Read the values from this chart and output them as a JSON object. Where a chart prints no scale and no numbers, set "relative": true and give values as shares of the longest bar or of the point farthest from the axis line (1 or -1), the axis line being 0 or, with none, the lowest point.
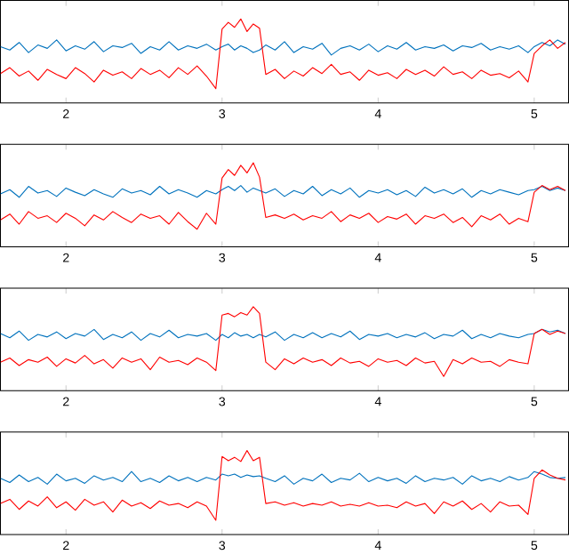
{
  "chart_data": [
    {
      "type": "line",
      "relative": true,
      "tick_labels": "x",
      "xlim": [
        1.58,
        5.22
      ],
      "xticks": [
        2,
        3,
        4,
        5
      ],
      "x": [
        1.58,
        1.64,
        1.7,
        1.76,
        1.82,
        1.88,
        1.94,
        2.0,
        2.06,
        2.12,
        2.18,
        2.24,
        2.3,
        2.36,
        2.42,
        2.48,
        2.54,
        2.6,
        2.66,
        2.72,
        2.78,
        2.84,
        2.9,
        2.96,
        3.0,
        3.04,
        3.08,
        3.12,
        3.16,
        3.2,
        3.24,
        3.28,
        3.34,
        3.4,
        3.46,
        3.52,
        3.58,
        3.64,
        3.7,
        3.76,
        3.82,
        3.88,
        3.94,
        4.0,
        4.06,
        4.12,
        4.18,
        4.24,
        4.3,
        4.36,
        4.42,
        4.48,
        4.54,
        4.6,
        4.66,
        4.72,
        4.78,
        4.84,
        4.9,
        4.96,
        5.0,
        5.05,
        5.1,
        5.15,
        5.2
      ],
      "series": [
        {
          "color": "#0072bd",
          "values": [
            0.67,
            0.63,
            0.72,
            0.6,
            0.69,
            0.65,
            0.75,
            0.62,
            0.68,
            0.64,
            0.73,
            0.61,
            0.68,
            0.66,
            0.71,
            0.59,
            0.67,
            0.63,
            0.73,
            0.63,
            0.68,
            0.65,
            0.7,
            0.63,
            0.67,
            0.7,
            0.63,
            0.68,
            0.65,
            0.6,
            0.63,
            0.69,
            0.63,
            0.73,
            0.6,
            0.67,
            0.64,
            0.71,
            0.57,
            0.65,
            0.68,
            0.63,
            0.7,
            0.61,
            0.68,
            0.64,
            0.72,
            0.63,
            0.67,
            0.65,
            0.69,
            0.62,
            0.68,
            0.66,
            0.71,
            0.63,
            0.67,
            0.64,
            0.68,
            0.6,
            0.67,
            0.72,
            0.68,
            0.75,
            0.7
          ]
        },
        {
          "color": "#ff0000",
          "values": [
            0.35,
            0.42,
            0.32,
            0.38,
            0.27,
            0.4,
            0.34,
            0.29,
            0.42,
            0.35,
            0.25,
            0.39,
            0.33,
            0.37,
            0.29,
            0.41,
            0.34,
            0.39,
            0.3,
            0.42,
            0.34,
            0.44,
            0.32,
            0.17,
            0.88,
            0.96,
            0.9,
            1.0,
            0.85,
            0.94,
            0.89,
            0.34,
            0.4,
            0.29,
            0.38,
            0.32,
            0.42,
            0.35,
            0.46,
            0.34,
            0.37,
            0.27,
            0.39,
            0.33,
            0.36,
            0.29,
            0.4,
            0.34,
            0.39,
            0.32,
            0.43,
            0.34,
            0.37,
            0.29,
            0.39,
            0.33,
            0.35,
            0.3,
            0.38,
            0.25,
            0.59,
            0.68,
            0.75,
            0.65,
            0.72
          ]
        }
      ]
    },
    {
      "type": "line",
      "relative": true,
      "tick_labels": "x",
      "xlim": [
        1.58,
        5.22
      ],
      "xticks": [
        2,
        3,
        4,
        5
      ],
      "x": [
        1.58,
        1.64,
        1.7,
        1.76,
        1.82,
        1.88,
        1.94,
        2.0,
        2.06,
        2.12,
        2.18,
        2.24,
        2.3,
        2.36,
        2.42,
        2.48,
        2.54,
        2.6,
        2.66,
        2.72,
        2.78,
        2.84,
        2.9,
        2.96,
        3.0,
        3.04,
        3.08,
        3.12,
        3.16,
        3.2,
        3.24,
        3.28,
        3.34,
        3.4,
        3.46,
        3.52,
        3.58,
        3.64,
        3.7,
        3.76,
        3.82,
        3.88,
        3.94,
        4.0,
        4.06,
        4.12,
        4.18,
        4.24,
        4.3,
        4.36,
        4.42,
        4.48,
        4.54,
        4.6,
        4.66,
        4.72,
        4.78,
        4.84,
        4.9,
        4.96,
        5.0,
        5.05,
        5.1,
        5.15,
        5.2
      ],
      "series": [
        {
          "color": "#0072bd",
          "values": [
            0.63,
            0.68,
            0.59,
            0.72,
            0.64,
            0.67,
            0.6,
            0.7,
            0.65,
            0.61,
            0.68,
            0.63,
            0.59,
            0.69,
            0.64,
            0.67,
            0.62,
            0.72,
            0.63,
            0.68,
            0.64,
            0.59,
            0.67,
            0.63,
            0.68,
            0.72,
            0.67,
            0.73,
            0.65,
            0.7,
            0.67,
            0.64,
            0.69,
            0.6,
            0.67,
            0.63,
            0.72,
            0.61,
            0.68,
            0.63,
            0.7,
            0.59,
            0.67,
            0.64,
            0.68,
            0.62,
            0.67,
            0.6,
            0.71,
            0.64,
            0.68,
            0.63,
            0.69,
            0.59,
            0.67,
            0.63,
            0.68,
            0.65,
            0.62,
            0.67,
            0.68,
            0.72,
            0.67,
            0.7,
            0.67
          ]
        },
        {
          "color": "#ff0000",
          "values": [
            0.32,
            0.39,
            0.27,
            0.42,
            0.34,
            0.37,
            0.29,
            0.4,
            0.34,
            0.25,
            0.38,
            0.32,
            0.42,
            0.35,
            0.29,
            0.39,
            0.34,
            0.37,
            0.27,
            0.41,
            0.3,
            0.21,
            0.4,
            0.27,
            0.82,
            0.92,
            0.85,
            0.97,
            0.88,
            1.0,
            0.83,
            0.35,
            0.38,
            0.34,
            0.39,
            0.32,
            0.37,
            0.34,
            0.42,
            0.3,
            0.38,
            0.34,
            0.4,
            0.29,
            0.36,
            0.33,
            0.39,
            0.27,
            0.37,
            0.34,
            0.39,
            0.29,
            0.35,
            0.24,
            0.37,
            0.32,
            0.39,
            0.27,
            0.34,
            0.3,
            0.65,
            0.73,
            0.68,
            0.72,
            0.67
          ]
        }
      ]
    },
    {
      "type": "line",
      "relative": true,
      "tick_labels": "x",
      "xlim": [
        1.58,
        5.22
      ],
      "xticks": [
        2,
        3,
        4,
        5
      ],
      "x": [
        1.58,
        1.64,
        1.7,
        1.76,
        1.82,
        1.88,
        1.94,
        2.0,
        2.06,
        2.12,
        2.18,
        2.24,
        2.3,
        2.36,
        2.42,
        2.48,
        2.54,
        2.6,
        2.66,
        2.72,
        2.78,
        2.84,
        2.9,
        2.96,
        3.0,
        3.04,
        3.08,
        3.12,
        3.16,
        3.2,
        3.24,
        3.28,
        3.34,
        3.4,
        3.46,
        3.52,
        3.58,
        3.64,
        3.7,
        3.76,
        3.82,
        3.88,
        3.94,
        4.0,
        4.06,
        4.12,
        4.18,
        4.24,
        4.3,
        4.36,
        4.42,
        4.48,
        4.54,
        4.6,
        4.66,
        4.72,
        4.78,
        4.84,
        4.9,
        4.96,
        5.0,
        5.05,
        5.1,
        5.15,
        5.2
      ],
      "series": [
        {
          "color": "#0072bd",
          "values": [
            0.68,
            0.63,
            0.71,
            0.6,
            0.67,
            0.64,
            0.7,
            0.62,
            0.68,
            0.65,
            0.73,
            0.61,
            0.67,
            0.63,
            0.7,
            0.6,
            0.68,
            0.64,
            0.72,
            0.63,
            0.67,
            0.65,
            0.68,
            0.6,
            0.67,
            0.63,
            0.69,
            0.65,
            0.67,
            0.63,
            0.67,
            0.64,
            0.7,
            0.6,
            0.67,
            0.63,
            0.69,
            0.63,
            0.68,
            0.64,
            0.71,
            0.61,
            0.67,
            0.65,
            0.68,
            0.63,
            0.67,
            0.64,
            0.69,
            0.62,
            0.67,
            0.65,
            0.72,
            0.62,
            0.67,
            0.63,
            0.68,
            0.65,
            0.63,
            0.67,
            0.68,
            0.73,
            0.7,
            0.72,
            0.68
          ]
        },
        {
          "color": "#ff0000",
          "values": [
            0.34,
            0.39,
            0.3,
            0.37,
            0.34,
            0.4,
            0.29,
            0.38,
            0.33,
            0.42,
            0.32,
            0.37,
            0.27,
            0.39,
            0.34,
            0.38,
            0.25,
            0.4,
            0.34,
            0.36,
            0.31,
            0.39,
            0.34,
            0.24,
            0.9,
            0.92,
            0.88,
            0.93,
            0.9,
            1.0,
            0.92,
            0.34,
            0.25,
            0.38,
            0.32,
            0.39,
            0.34,
            0.37,
            0.3,
            0.39,
            0.33,
            0.35,
            0.29,
            0.38,
            0.34,
            0.36,
            0.3,
            0.39,
            0.33,
            0.35,
            0.17,
            0.37,
            0.32,
            0.39,
            0.34,
            0.35,
            0.29,
            0.37,
            0.34,
            0.32,
            0.68,
            0.73,
            0.67,
            0.71,
            0.68
          ]
        }
      ]
    },
    {
      "type": "line",
      "relative": true,
      "tick_labels": "x",
      "xlim": [
        1.58,
        5.22
      ],
      "xticks": [
        2,
        3,
        4,
        5
      ],
      "x": [
        1.58,
        1.64,
        1.7,
        1.76,
        1.82,
        1.88,
        1.94,
        2.0,
        2.06,
        2.12,
        2.18,
        2.24,
        2.3,
        2.36,
        2.42,
        2.48,
        2.54,
        2.6,
        2.66,
        2.72,
        2.78,
        2.84,
        2.9,
        2.96,
        3.0,
        3.04,
        3.08,
        3.12,
        3.16,
        3.2,
        3.24,
        3.28,
        3.34,
        3.4,
        3.46,
        3.52,
        3.58,
        3.64,
        3.7,
        3.76,
        3.82,
        3.88,
        3.94,
        4.0,
        4.06,
        4.12,
        4.18,
        4.24,
        4.3,
        4.36,
        4.42,
        4.48,
        4.54,
        4.6,
        4.66,
        4.72,
        4.78,
        4.84,
        4.9,
        4.96,
        5.0,
        5.05,
        5.1,
        5.15,
        5.2
      ],
      "series": [
        {
          "color": "#0072bd",
          "values": [
            0.67,
            0.62,
            0.71,
            0.63,
            0.68,
            0.6,
            0.72,
            0.64,
            0.67,
            0.61,
            0.7,
            0.65,
            0.68,
            0.63,
            0.75,
            0.63,
            0.67,
            0.62,
            0.7,
            0.64,
            0.68,
            0.63,
            0.68,
            0.65,
            0.72,
            0.7,
            0.72,
            0.68,
            0.71,
            0.69,
            0.7,
            0.67,
            0.63,
            0.7,
            0.6,
            0.67,
            0.64,
            0.72,
            0.62,
            0.67,
            0.65,
            0.73,
            0.63,
            0.68,
            0.64,
            0.67,
            0.61,
            0.7,
            0.63,
            0.67,
            0.65,
            0.68,
            0.6,
            0.7,
            0.64,
            0.67,
            0.63,
            0.69,
            0.65,
            0.68,
            0.75,
            0.72,
            0.68,
            0.67,
            0.68
          ]
        },
        {
          "color": "#ff0000",
          "values": [
            0.37,
            0.42,
            0.3,
            0.4,
            0.34,
            0.45,
            0.32,
            0.39,
            0.29,
            0.42,
            0.35,
            0.39,
            0.27,
            0.41,
            0.34,
            0.38,
            0.31,
            0.4,
            0.35,
            0.37,
            0.32,
            0.39,
            0.34,
            0.17,
            0.93,
            0.88,
            0.92,
            0.87,
            1.0,
            0.88,
            0.92,
            0.37,
            0.39,
            0.35,
            0.38,
            0.34,
            0.37,
            0.35,
            0.39,
            0.34,
            0.36,
            0.34,
            0.38,
            0.34,
            0.35,
            0.32,
            0.39,
            0.34,
            0.37,
            0.25,
            0.39,
            0.34,
            0.4,
            0.3,
            0.37,
            0.27,
            0.39,
            0.34,
            0.35,
            0.24,
            0.67,
            0.77,
            0.71,
            0.67,
            0.65
          ]
        }
      ]
    }
  ]
}
